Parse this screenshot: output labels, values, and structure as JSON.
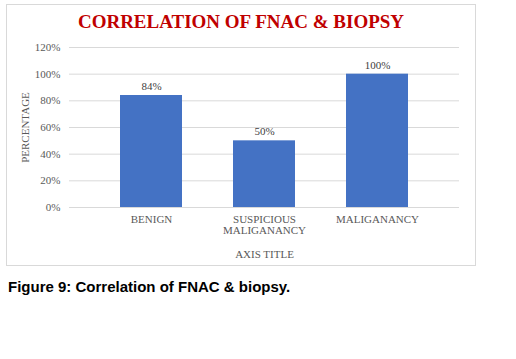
{
  "chart_data": {
    "type": "bar",
    "title": "CORRELATION OF FNAC & BIOPSY",
    "caption": "Figure 9: Correlation of FNAC & biopsy.",
    "x_label": "AXIS TITLE",
    "y_label": "PERCENTAGE",
    "categories": [
      "BENIGN",
      "SUSPICIOUS MALIGANANCY",
      "MALIGANANCY"
    ],
    "values": [
      84,
      50,
      100
    ],
    "value_labels": [
      "84%",
      "50%",
      "100%"
    ],
    "data_labels": true,
    "color": "#4472c4",
    "ylim": [
      0,
      120
    ],
    "yticks": [
      {
        "value": 0,
        "label": "0%"
      },
      {
        "value": 20,
        "label": "20%"
      },
      {
        "value": 40,
        "label": "40%"
      },
      {
        "value": 60,
        "label": "60%"
      },
      {
        "value": 80,
        "label": "80%"
      },
      {
        "value": 100,
        "label": "100%"
      },
      {
        "value": 120,
        "label": "120%"
      }
    ],
    "grid": true
  }
}
